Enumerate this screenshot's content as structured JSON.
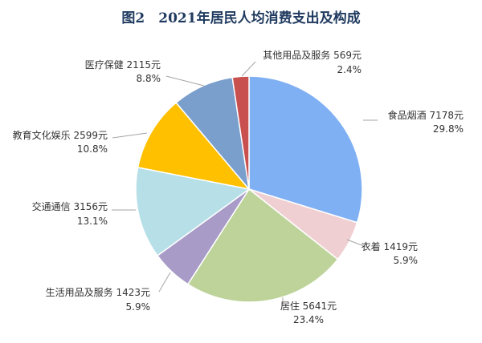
{
  "chart_data": {
    "type": "pie",
    "title": "图2　2021年居民人均消费支出及构成",
    "start_angle_deg": 0,
    "direction": "clockwise",
    "slices": [
      {
        "name": "食品烟酒",
        "value_label": "7178元",
        "value": 7178,
        "percent": 29.8,
        "percent_label": "29.8%",
        "color": "#7fb0f3"
      },
      {
        "name": "衣着",
        "value_label": "1419元",
        "value": 1419,
        "percent": 5.9,
        "percent_label": "5.9%",
        "color": "#f0cfd2"
      },
      {
        "name": "居住",
        "value_label": "5641元",
        "value": 5641,
        "percent": 23.4,
        "percent_label": "23.4%",
        "color": "#bdd39a"
      },
      {
        "name": "生活用品及服务",
        "value_label": "1423元",
        "value": 1423,
        "percent": 5.9,
        "percent_label": "5.9%",
        "color": "#a89bc7"
      },
      {
        "name": "交通通信",
        "value_label": "3156元",
        "value": 3156,
        "percent": 13.1,
        "percent_label": "13.1%",
        "color": "#b6dfe7"
      },
      {
        "name": "教育文化娱乐",
        "value_label": "2599元",
        "value": 2599,
        "percent": 10.8,
        "percent_label": "10.8%",
        "color": "#ffc000"
      },
      {
        "name": "医疗保健",
        "value_label": "2115元",
        "value": 2115,
        "percent": 8.8,
        "percent_label": "8.8%",
        "color": "#7a9fcc"
      },
      {
        "name": "其他用品及服务",
        "value_label": "569元",
        "value": 569,
        "percent": 2.4,
        "percent_label": "2.4%",
        "color": "#c8504f"
      }
    ]
  }
}
